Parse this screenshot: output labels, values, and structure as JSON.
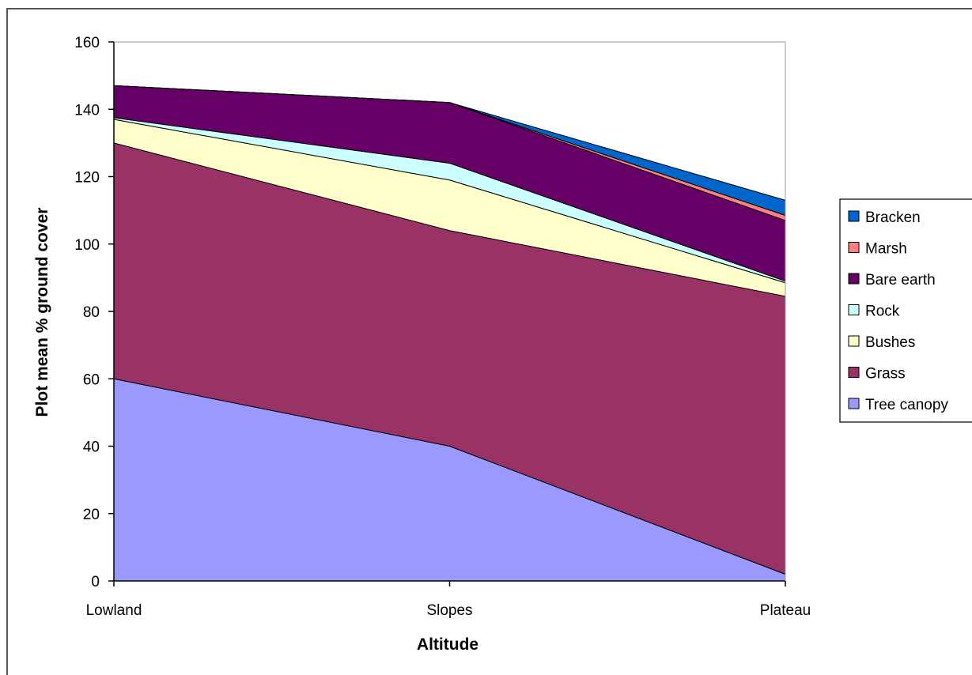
{
  "chart_data": {
    "type": "area",
    "stacked": true,
    "title": "",
    "xlabel": "Altitude",
    "ylabel": "Plot mean % ground  cover",
    "ylim": [
      0,
      160
    ],
    "yticks": [
      0,
      20,
      40,
      60,
      80,
      100,
      120,
      140,
      160
    ],
    "categories": [
      "Lowland",
      "Slopes",
      "Plateau"
    ],
    "grid": false,
    "legend_position": "right",
    "series": [
      {
        "name": "Tree canopy",
        "color": "#9999ff",
        "values": [
          60,
          40,
          2
        ]
      },
      {
        "name": "Grass",
        "color": "#993366",
        "values": [
          70,
          64,
          82.5
        ]
      },
      {
        "name": "Bushes",
        "color": "#ffffcc",
        "values": [
          7,
          15,
          4
        ]
      },
      {
        "name": "Rock",
        "color": "#ccffff",
        "values": [
          0.5,
          5,
          0.5
        ]
      },
      {
        "name": "Bare earth",
        "color": "#660066",
        "values": [
          9.5,
          18,
          18
        ]
      },
      {
        "name": "Marsh",
        "color": "#ff8080",
        "values": [
          0,
          0,
          1.5
        ]
      },
      {
        "name": "Bracken",
        "color": "#0066cc",
        "values": [
          0,
          0,
          4.5
        ]
      }
    ]
  }
}
